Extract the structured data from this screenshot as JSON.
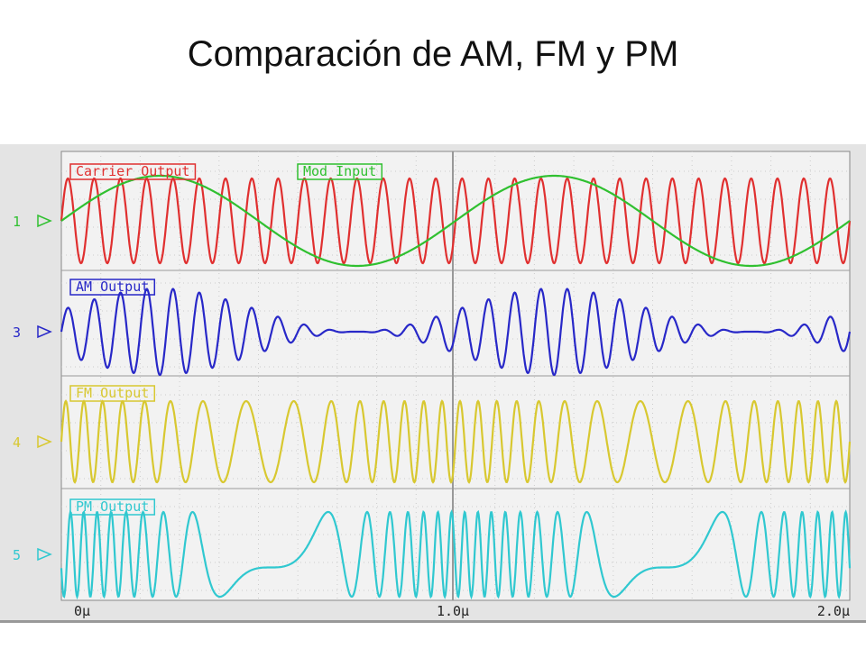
{
  "header": {
    "title": "Comparación de AM, FM y PM"
  },
  "scope": {
    "traces": [
      {
        "label": "Carrier Output",
        "color": "#e03030"
      },
      {
        "label": "Mod Input",
        "color": "#30c030"
      },
      {
        "label": "AM Output",
        "color": "#2828c8"
      },
      {
        "label": "FM Output",
        "color": "#d8c830"
      },
      {
        "label": "PM Output",
        "color": "#30c8d0"
      }
    ],
    "channels": [
      {
        "label": "1",
        "color": "#30c030"
      },
      {
        "label": "3",
        "color": "#2828c8"
      },
      {
        "label": "4",
        "color": "#d8c830"
      },
      {
        "label": "5",
        "color": "#30c8d0"
      }
    ],
    "time_labels": [
      "0µ",
      "1.0µ",
      "2.0µ"
    ]
  }
}
